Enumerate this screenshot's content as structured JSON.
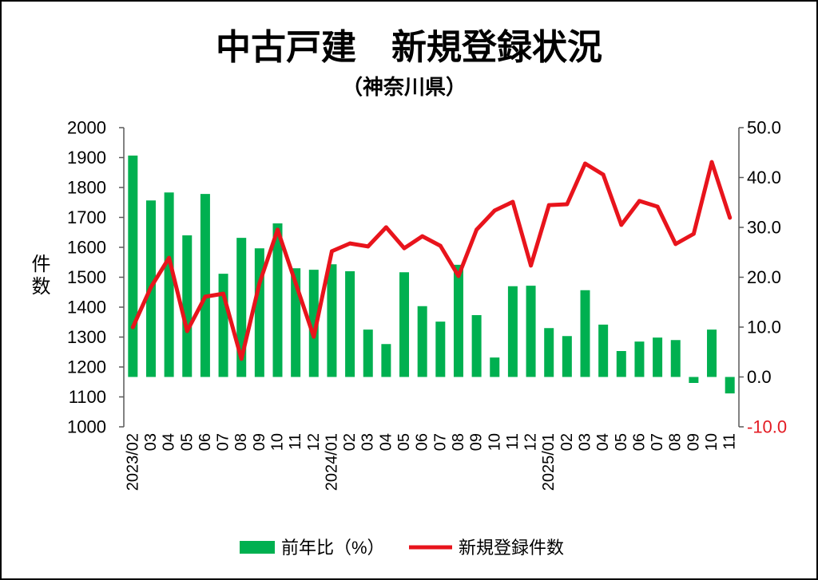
{
  "chart_data": {
    "type": "bar",
    "title": "中古戸建　新規登録状況",
    "subtitle": "（神奈川県）",
    "ylabel": "件数",
    "xlabel": "",
    "ylim": [
      1000,
      2000
    ],
    "y2lim": [
      -10,
      50
    ],
    "yticks": [
      "1000",
      "1100",
      "1200",
      "1300",
      "1400",
      "1500",
      "1600",
      "1700",
      "1800",
      "1900",
      "2000"
    ],
    "y2ticks": [
      "-10.0",
      "0.0",
      "10.0",
      "20.0",
      "30.0",
      "40.0",
      "50.0"
    ],
    "y2_negative_tick_color": "#e31b23",
    "grid": false,
    "legend_position": "bottom",
    "categories": [
      "2023/02",
      "03",
      "04",
      "05",
      "06",
      "07",
      "08",
      "09",
      "10",
      "11",
      "12",
      "2024/01",
      "02",
      "03",
      "04",
      "05",
      "06",
      "07",
      "08",
      "09",
      "10",
      "11",
      "12",
      "2025/01",
      "02",
      "03",
      "04",
      "05",
      "06",
      "07",
      "08",
      "09",
      "10",
      "11"
    ],
    "series": [
      {
        "name": "前年比（%）",
        "type": "bar",
        "axis": "right",
        "color": "#00b050",
        "values": [
          44.4,
          35.4,
          37.0,
          28.4,
          36.7,
          20.7,
          27.9,
          25.8,
          30.8,
          21.8,
          21.5,
          22.6,
          21.2,
          9.5,
          6.6,
          21.0,
          14.2,
          11.1,
          22.5,
          12.4,
          3.9,
          18.2,
          18.3,
          9.8,
          8.2,
          17.4,
          10.5,
          5.2,
          7.1,
          7.9,
          7.4,
          -1.2,
          9.5,
          -3.3
        ]
      },
      {
        "name": "新規登録件数",
        "type": "line",
        "axis": "left",
        "color": "#e8141c",
        "values": [
          1333,
          1467,
          1565,
          1320,
          1435,
          1445,
          1227,
          1480,
          1659,
          1480,
          1301,
          1587,
          1613,
          1603,
          1667,
          1597,
          1637,
          1605,
          1504,
          1659,
          1723,
          1752,
          1539,
          1741,
          1744,
          1880,
          1843,
          1675,
          1755,
          1736,
          1611,
          1645,
          1885,
          1699
        ]
      }
    ]
  }
}
